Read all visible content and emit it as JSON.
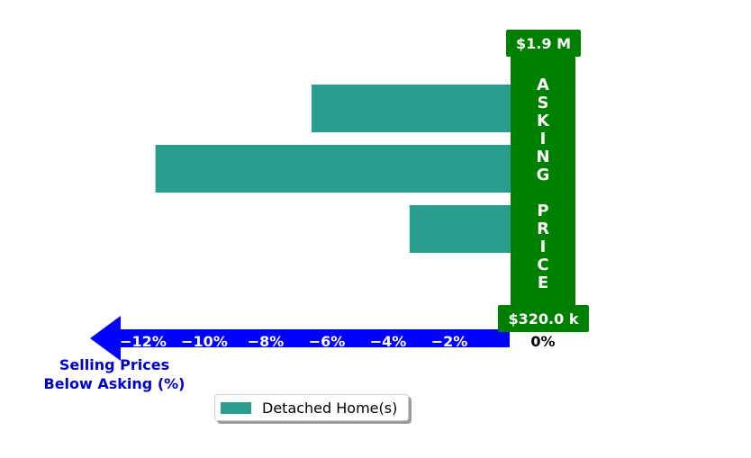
{
  "colors": {
    "bar": "#2a9d8f",
    "asking_panel": "#008000",
    "arrow": "#0000ff",
    "axis_title": "#0000cc"
  },
  "chart_data": {
    "type": "bar",
    "orientation": "horizontal",
    "series": [
      {
        "name": "Detached Home(s)",
        "values": [
          -6.5,
          -11.6,
          -3.3,
          0.2
        ]
      }
    ],
    "xlim": [
      -14.5,
      0.75
    ],
    "x_ticks": [
      -12,
      -10,
      -8,
      -6,
      -4,
      -2,
      0
    ],
    "x_tick_labels": [
      "−12%",
      "−10%",
      "−8%",
      "−6%",
      "−4%",
      "−2%",
      "0%"
    ],
    "xlabel": "Selling Prices\nBelow Asking (%)",
    "asking_label": "ASKING PRICE",
    "price_top": "$1.9 M",
    "price_bottom": "$320.0 k",
    "legend_position": "bottom-center"
  }
}
